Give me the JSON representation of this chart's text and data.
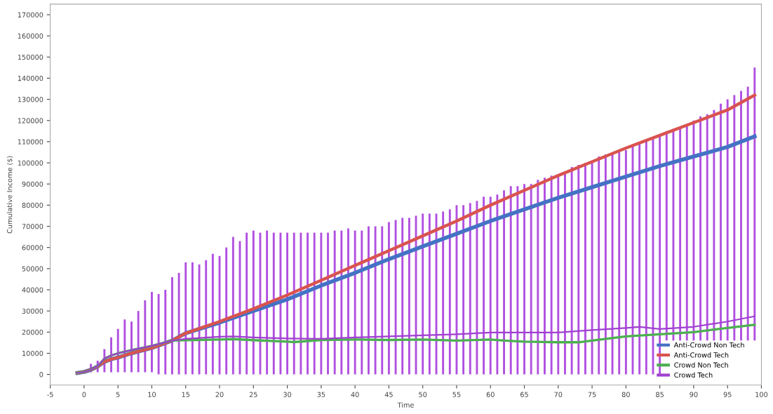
{
  "chart_data": {
    "type": "line",
    "xlabel": "Time",
    "ylabel": "Cumulative Income ($)",
    "xlim": [
      -5,
      100
    ],
    "xticks": [
      -5,
      0,
      5,
      10,
      15,
      20,
      25,
      30,
      35,
      40,
      45,
      50,
      55,
      60,
      65,
      70,
      75,
      80,
      85,
      90,
      95,
      100
    ],
    "ylim": [
      -5000,
      175000
    ],
    "yticks": [
      0,
      10000,
      20000,
      30000,
      40000,
      50000,
      60000,
      70000,
      80000,
      90000,
      100000,
      110000,
      120000,
      130000,
      140000,
      150000,
      160000,
      170000
    ],
    "legend": "bottom right",
    "grid": false,
    "marker": "none",
    "line_style": "solid",
    "series": [
      {
        "type": "bar",
        "color": "#b050e0",
        "x": [
          1,
          2,
          3,
          4,
          5,
          6,
          7,
          8,
          9,
          10,
          11,
          12,
          13,
          14,
          15,
          16,
          17,
          18,
          19,
          20,
          21,
          22,
          23,
          24,
          25,
          26,
          27,
          28,
          29,
          30,
          31,
          32,
          33,
          34,
          35,
          36,
          37,
          38,
          39,
          40,
          41,
          42,
          43,
          44,
          45,
          46,
          47,
          48,
          49,
          50,
          51,
          52,
          53,
          54,
          55,
          56,
          57,
          58,
          59,
          60,
          61,
          62,
          63,
          64,
          65,
          66,
          67,
          68,
          69,
          70,
          71,
          72,
          73,
          74,
          75,
          76,
          77,
          78,
          79,
          80,
          81,
          82,
          83,
          84,
          85,
          86,
          87,
          88,
          89,
          90,
          91,
          92,
          93,
          94,
          95,
          96,
          97,
          98,
          99
        ],
        "base": [
          1000,
          1000,
          1000,
          1000,
          1000,
          1000,
          1000,
          1000,
          1000,
          1000,
          0,
          0,
          0,
          0,
          0,
          0,
          0,
          0,
          0,
          0,
          0,
          0,
          0,
          0,
          0,
          0,
          0,
          0,
          0,
          0,
          0,
          0,
          0,
          0,
          0,
          0,
          0,
          0,
          0,
          0,
          0,
          0,
          0,
          0,
          0,
          0,
          0,
          0,
          0,
          0,
          0,
          0,
          0,
          0,
          0,
          0,
          0,
          0,
          0,
          0,
          0,
          0,
          0,
          0,
          0,
          0,
          0,
          0,
          0,
          0,
          0,
          0,
          0,
          0,
          0,
          0,
          0,
          0,
          0,
          0,
          0,
          0,
          0,
          0,
          0,
          16000,
          16000,
          16000,
          16000,
          16000,
          16000,
          16000,
          16000,
          16000,
          16000,
          16000,
          16000,
          16000,
          16000
        ],
        "values": [
          4000,
          5500,
          11000,
          16500,
          20500,
          25000,
          24000,
          29000,
          34000,
          38000,
          38000,
          40000,
          46000,
          48000,
          53000,
          53000,
          52000,
          54000,
          57000,
          56000,
          60000,
          65000,
          63000,
          67000,
          68000,
          67000,
          68000,
          67000,
          67000,
          67000,
          67000,
          67000,
          67000,
          67000,
          67000,
          67000,
          68000,
          68000,
          69000,
          68000,
          68000,
          70000,
          70000,
          70000,
          72000,
          73000,
          74000,
          74000,
          75000,
          76000,
          76000,
          76000,
          77000,
          78000,
          80000,
          80000,
          81000,
          82000,
          84000,
          84000,
          85000,
          87000,
          89000,
          89000,
          90000,
          90000,
          92000,
          93000,
          94000,
          94000,
          95000,
          98000,
          99000,
          100000,
          101000,
          103000,
          104000,
          104000,
          105000,
          106000,
          108000,
          109000,
          110000,
          112000,
          113000,
          99000,
          100000,
          101000,
          102000,
          104000,
          106000,
          107000,
          109000,
          112000,
          114000,
          116000,
          118000,
          120000,
          129000
        ]
      },
      {
        "name": "Anti-Crowd Non Tech",
        "color": "#4472c4",
        "x": [
          -1,
          0,
          1,
          2,
          3,
          4,
          5,
          7,
          10,
          13,
          15,
          20,
          25,
          30,
          35,
          40,
          45,
          50,
          55,
          60,
          65,
          70,
          75,
          80,
          85,
          90,
          95,
          99
        ],
        "values": [
          700,
          1200,
          2200,
          3800,
          6000,
          7200,
          8000,
          10000,
          12500,
          16000,
          19500,
          24500,
          30000,
          35500,
          42000,
          48000,
          54500,
          60500,
          66500,
          72500,
          78000,
          83500,
          88500,
          93500,
          98500,
          103000,
          107500,
          112500
        ]
      },
      {
        "name": "Anti-Crowd Tech",
        "color": "#d9534f",
        "x": [
          -1,
          0,
          1,
          2,
          3,
          4,
          5,
          7,
          10,
          13,
          15,
          20,
          25,
          30,
          35,
          40,
          45,
          50,
          55,
          60,
          65,
          70,
          75,
          80,
          85,
          90,
          95,
          99
        ],
        "values": [
          700,
          1200,
          2200,
          3800,
          6000,
          7200,
          8000,
          10000,
          12500,
          16000,
          19500,
          25000,
          31000,
          37500,
          44500,
          51500,
          58500,
          65500,
          72500,
          80000,
          87000,
          94000,
          100500,
          107000,
          113000,
          119000,
          125000,
          132000
        ]
      },
      {
        "name": "Crowd Non Tech",
        "color": "#4caf50",
        "x": [
          -1,
          0,
          1,
          2,
          3,
          4,
          5,
          7,
          10,
          13,
          15,
          20,
          22,
          25,
          30,
          31,
          35,
          40,
          45,
          50,
          55,
          60,
          62,
          65,
          70,
          73,
          75,
          80,
          85,
          90,
          95,
          99
        ],
        "values": [
          700,
          1200,
          2200,
          4000,
          7500,
          9000,
          10000,
          11500,
          13500,
          16000,
          16200,
          16500,
          16700,
          16200,
          15500,
          15300,
          16300,
          16500,
          16300,
          16500,
          16000,
          16500,
          16000,
          15500,
          15200,
          15200,
          16000,
          18000,
          19000,
          20000,
          22000,
          23500
        ]
      },
      {
        "name": "Crowd Tech",
        "color": "#a040d0",
        "x": [
          -1,
          0,
          1,
          2,
          3,
          4,
          5,
          7,
          10,
          13,
          15,
          20,
          22,
          25,
          30,
          35,
          40,
          45,
          50,
          55,
          60,
          65,
          70,
          75,
          80,
          82,
          85,
          90,
          95,
          99
        ],
        "values": [
          700,
          1200,
          2200,
          4000,
          7500,
          9000,
          10000,
          11500,
          13500,
          16000,
          16800,
          17800,
          18000,
          17500,
          17000,
          16800,
          17500,
          18000,
          18500,
          19000,
          19800,
          19800,
          19800,
          21000,
          22000,
          22500,
          21500,
          22500,
          25000,
          27500
        ]
      }
    ]
  }
}
